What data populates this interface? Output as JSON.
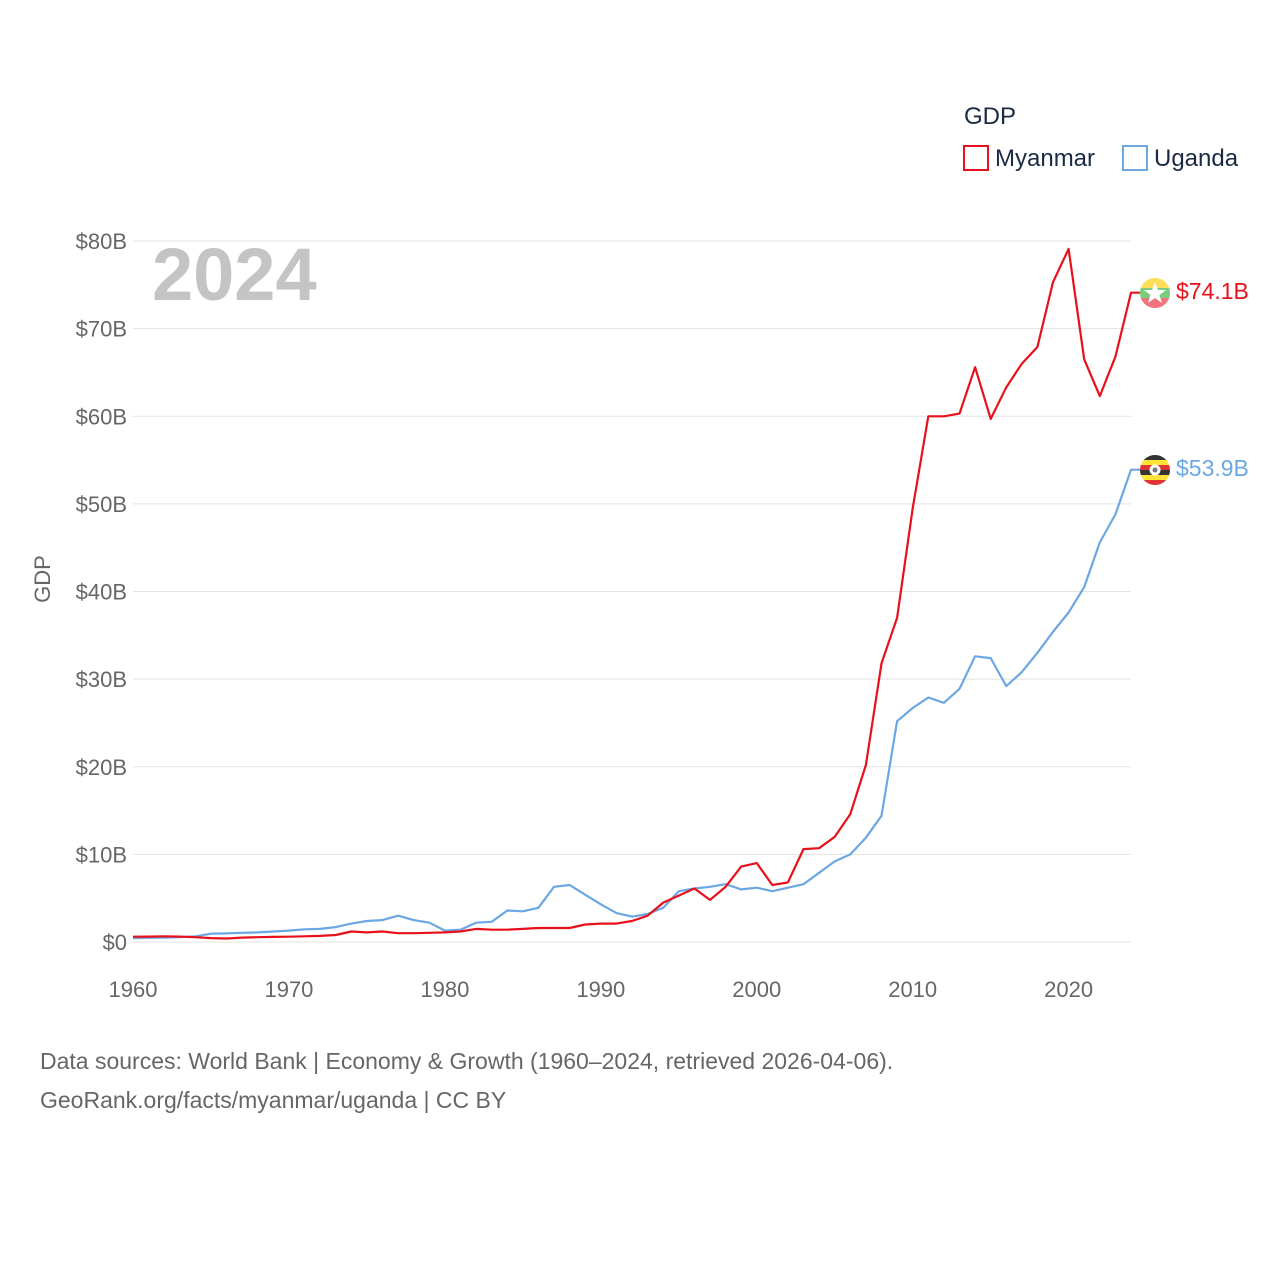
{
  "chart_data": {
    "type": "line",
    "title": "GDP",
    "current_year_label": "2024",
    "ylabel": "GDP",
    "xlabel": "",
    "xlim": [
      1960,
      2024
    ],
    "ylim": [
      0,
      80
    ],
    "x_ticks": [
      1960,
      1970,
      1980,
      1990,
      2000,
      2010,
      2020
    ],
    "y_ticks": [
      {
        "value": 0,
        "label": "$0"
      },
      {
        "value": 10,
        "label": "$10B"
      },
      {
        "value": 20,
        "label": "$20B"
      },
      {
        "value": 30,
        "label": "$30B"
      },
      {
        "value": 40,
        "label": "$40B"
      },
      {
        "value": 50,
        "label": "$50B"
      },
      {
        "value": 60,
        "label": "$60B"
      },
      {
        "value": 70,
        "label": "$70B"
      },
      {
        "value": 80,
        "label": "$80B"
      }
    ],
    "units": "billion USD",
    "grid": true,
    "legend_position": "top-right",
    "x": [
      1960,
      1961,
      1962,
      1963,
      1964,
      1965,
      1966,
      1967,
      1968,
      1969,
      1970,
      1971,
      1972,
      1973,
      1974,
      1975,
      1976,
      1977,
      1978,
      1979,
      1980,
      1981,
      1982,
      1983,
      1984,
      1985,
      1986,
      1987,
      1988,
      1989,
      1990,
      1991,
      1992,
      1993,
      1994,
      1995,
      1996,
      1997,
      1998,
      1999,
      2000,
      2001,
      2002,
      2003,
      2004,
      2005,
      2006,
      2007,
      2008,
      2009,
      2010,
      2011,
      2012,
      2013,
      2014,
      2015,
      2016,
      2017,
      2018,
      2019,
      2020,
      2021,
      2022,
      2023,
      2024
    ],
    "series": [
      {
        "name": "Myanmar",
        "color": "#e8101a",
        "end_label": "$74.1B",
        "flag": "myanmar-flag",
        "values": [
          0.6,
          0.62,
          0.65,
          0.62,
          0.55,
          0.45,
          0.4,
          0.5,
          0.55,
          0.58,
          0.6,
          0.65,
          0.7,
          0.8,
          1.2,
          1.1,
          1.2,
          1.0,
          1.0,
          1.05,
          1.1,
          1.2,
          1.5,
          1.4,
          1.4,
          1.5,
          1.6,
          1.6,
          1.6,
          2.0,
          2.1,
          2.1,
          2.4,
          3.0,
          4.5,
          5.3,
          6.1,
          4.8,
          6.3,
          8.6,
          9.0,
          6.5,
          6.8,
          10.6,
          10.7,
          12.0,
          14.6,
          20.2,
          31.8,
          37.0,
          49.5,
          60.0,
          60.0,
          60.3,
          65.6,
          59.7,
          63.3,
          66.0,
          67.9,
          75.3,
          79.1,
          66.5,
          62.3,
          66.8,
          74.1
        ]
      },
      {
        "name": "Uganda",
        "color": "#6aa7e3",
        "end_label": "$53.9B",
        "flag": "uganda-flag",
        "values": [
          0.45,
          0.48,
          0.5,
          0.55,
          0.65,
          0.95,
          0.98,
          1.05,
          1.1,
          1.2,
          1.3,
          1.45,
          1.5,
          1.7,
          2.1,
          2.4,
          2.5,
          3.0,
          2.5,
          2.2,
          1.3,
          1.4,
          2.2,
          2.3,
          3.6,
          3.5,
          3.9,
          6.3,
          6.5,
          5.4,
          4.3,
          3.3,
          2.9,
          3.2,
          3.9,
          5.8,
          6.1,
          6.3,
          6.6,
          6.0,
          6.2,
          5.8,
          6.2,
          6.6,
          7.9,
          9.2,
          10.0,
          11.9,
          14.4,
          25.2,
          26.7,
          27.9,
          27.3,
          28.9,
          32.6,
          32.4,
          29.2,
          30.8,
          33.0,
          35.4,
          37.6,
          40.5,
          45.6,
          48.8,
          53.9
        ]
      }
    ]
  },
  "footer": {
    "line1": "Data sources: World Bank | Economy & Growth (1960–2024, retrieved 2026-04-06).",
    "line2": "GeoRank.org/facts/myanmar/uganda | CC BY"
  }
}
